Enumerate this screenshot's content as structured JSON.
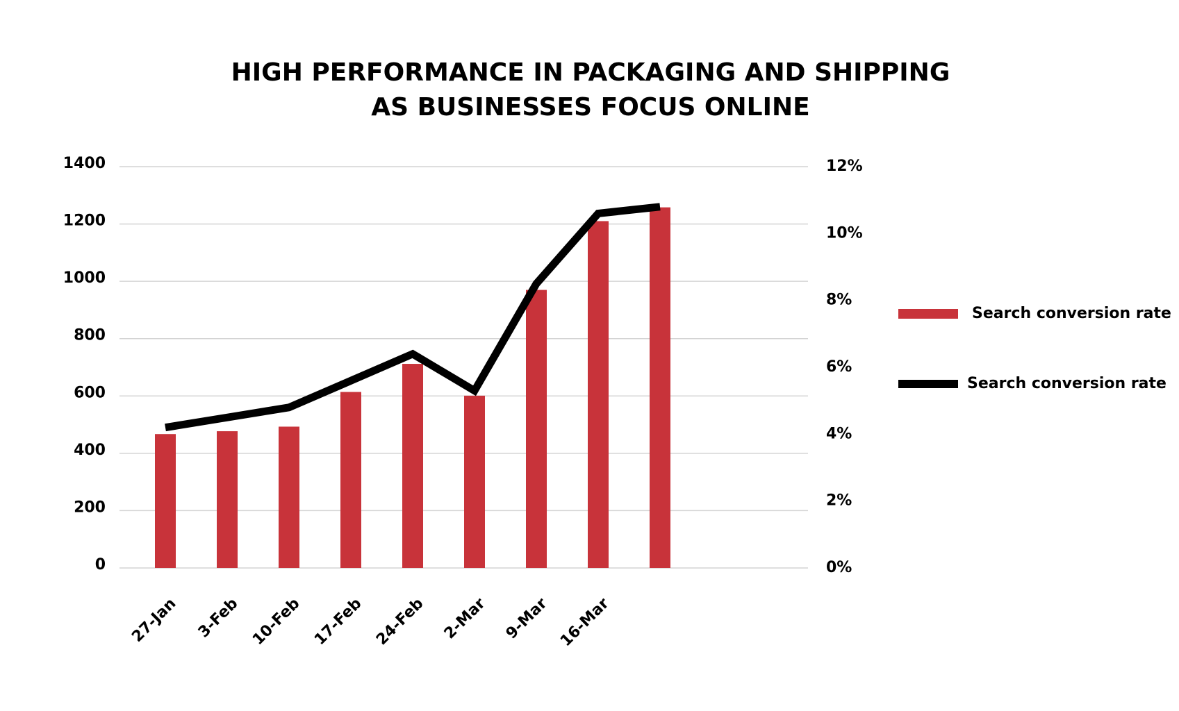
{
  "chart_data": {
    "type": "bar_line",
    "title": "HIGH PERFORMANCE IN PACKAGING AND SHIPPING AS BUSINESSES FOCUS ONLINE",
    "categories": [
      "27-Jan",
      "3-Feb",
      "10-Feb",
      "17-Feb",
      "24-Feb",
      "2-Mar",
      "9-Mar",
      "16-Mar",
      null
    ],
    "series": [
      {
        "name": "Search conversion rate",
        "type": "bar",
        "color": "#c8333a",
        "values": [
          467,
          477,
          493,
          614,
          712,
          601,
          970,
          1210,
          1258
        ]
      },
      {
        "name": "Search conversion rate",
        "type": "line",
        "axis": "y2",
        "color": "#000000",
        "values": [
          4.2,
          4.5,
          4.8,
          5.6,
          6.4,
          5.3,
          8.5,
          10.6,
          10.8
        ]
      }
    ],
    "ylim": [
      0,
      1400
    ],
    "yticks": [
      0,
      200,
      400,
      600,
      800,
      1000,
      1200,
      1400
    ],
    "y2lim": [
      0,
      12
    ],
    "y2ticks": [
      {
        "value": 0,
        "label": "0%"
      },
      {
        "value": 2,
        "label": "2%"
      },
      {
        "value": 4,
        "label": "4%"
      },
      {
        "value": 6,
        "label": "6%"
      },
      {
        "value": 8,
        "label": "8%"
      },
      {
        "value": 10,
        "label": "10%"
      },
      {
        "value": 12,
        "label": "12%"
      }
    ],
    "grid": true,
    "legend": "right"
  }
}
